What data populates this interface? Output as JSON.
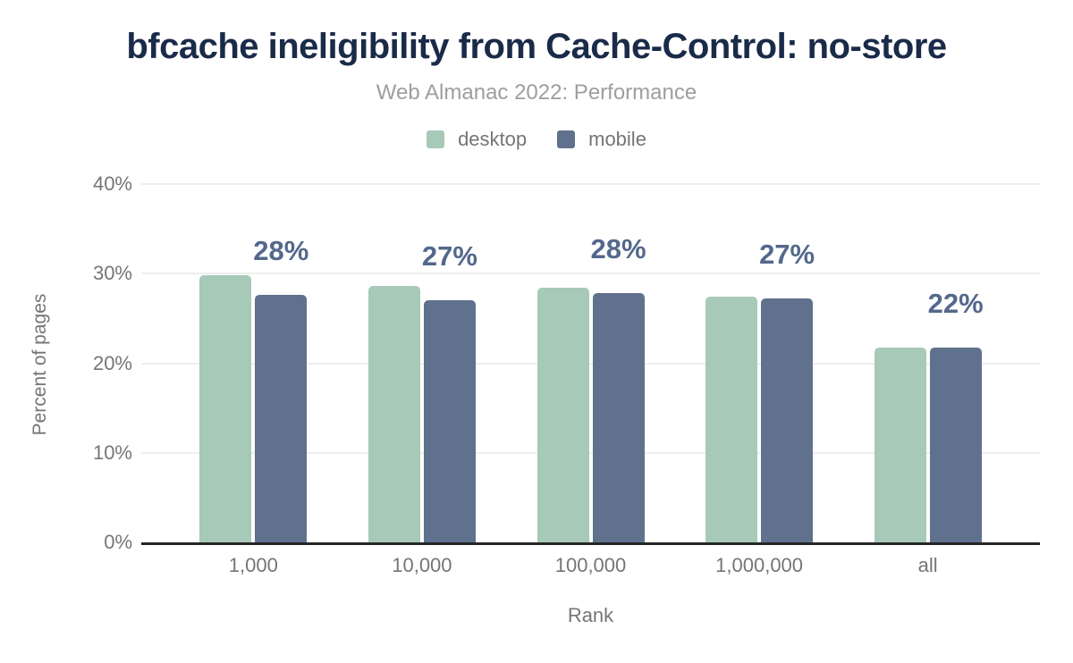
{
  "title": "bfcache ineligibility from Cache-Control: no-store",
  "subtitle": "Web Almanac 2022: Performance",
  "colors": {
    "title": "#1a2b49",
    "subtitle": "#9e9e9e",
    "axis_text": "#757575",
    "value_label": "#54688c",
    "gridline": "#eeeeee",
    "baseline": "#262626",
    "desktop": "#a7c9b8",
    "mobile": "#5f718c"
  },
  "legend": [
    {
      "label": "desktop",
      "color": "#a7c9b8"
    },
    {
      "label": "mobile",
      "color": "#5f718c"
    }
  ],
  "chart_data": {
    "type": "bar",
    "title": "bfcache ineligibility from Cache-Control: no-store",
    "subtitle": "Web Almanac 2022: Performance",
    "categories": [
      "1,000",
      "10,000",
      "100,000",
      "1,000,000",
      "all"
    ],
    "series": [
      {
        "name": "desktop",
        "color": "#a7c9b8",
        "values": [
          29.8,
          28.6,
          28.4,
          27.4,
          21.7
        ]
      },
      {
        "name": "mobile",
        "color": "#5f718c",
        "values": [
          27.6,
          27.0,
          27.8,
          27.2,
          21.7
        ]
      }
    ],
    "bar_labels": [
      "28%",
      "27%",
      "28%",
      "27%",
      "22%"
    ],
    "bar_labels_over_series": "mobile",
    "xlabel": "Rank",
    "ylabel": "Percent of pages",
    "ylim": [
      0,
      40
    ],
    "y_ticks": [
      {
        "value": 0,
        "label": "0%"
      },
      {
        "value": 10,
        "label": "10%"
      },
      {
        "value": 20,
        "label": "20%"
      },
      {
        "value": 30,
        "label": "30%"
      },
      {
        "value": 40,
        "label": "40%"
      }
    ],
    "grid": "horizontal",
    "legend_position": "top"
  }
}
